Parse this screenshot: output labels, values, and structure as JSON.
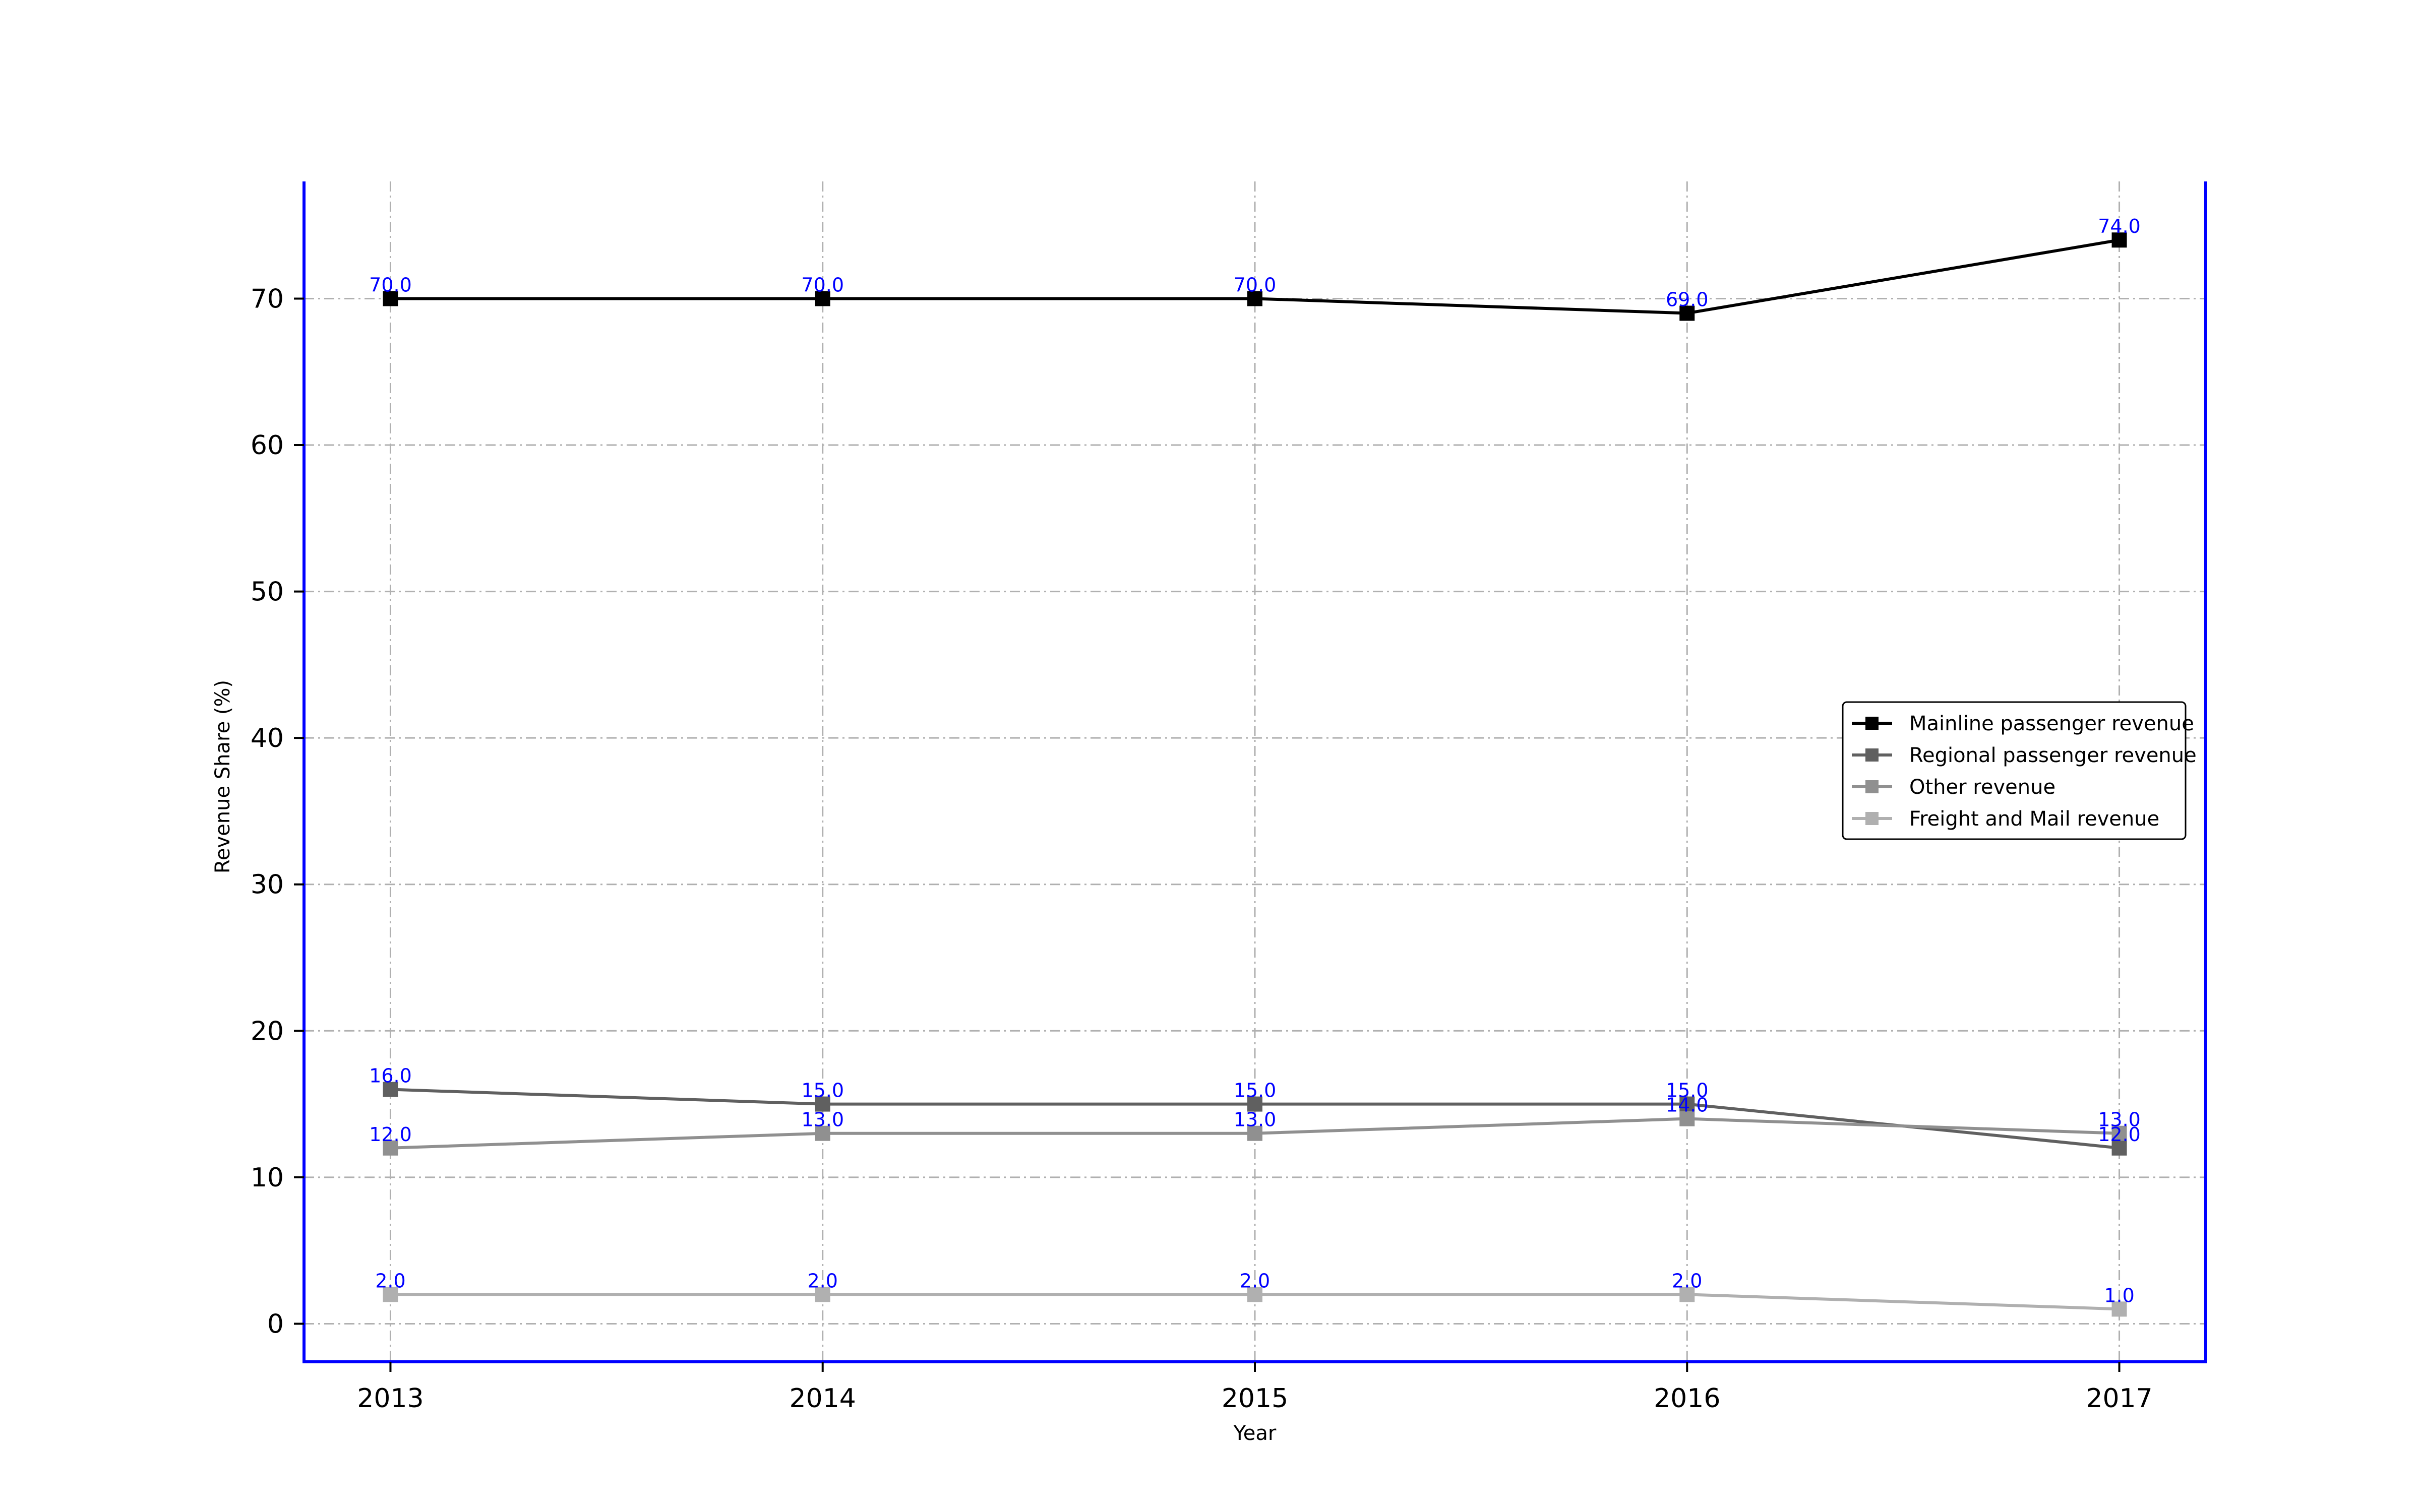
{
  "chart_data": {
    "type": "line",
    "title": "",
    "xlabel": "Year",
    "ylabel": "Revenue Share (%)",
    "x": [
      "2013",
      "2014",
      "2015",
      "2016",
      "2017"
    ],
    "xlim": [
      2012.8,
      2017.2
    ],
    "ylim": [
      -2.6,
      78
    ],
    "yticks": [
      0,
      10,
      20,
      30,
      40,
      50,
      60,
      70
    ],
    "grid": true,
    "legend_position": "center-right",
    "label_color": "#0000ff",
    "axis_color": "#0000ff",
    "series": [
      {
        "name": "Mainline passenger revenue",
        "color": "#000000",
        "marker": "square",
        "values": [
          70.0,
          70.0,
          70.0,
          69.0,
          74.0
        ]
      },
      {
        "name": "Regional passenger revenue",
        "color": "#606060",
        "marker": "square",
        "values": [
          16.0,
          15.0,
          15.0,
          15.0,
          12.0
        ]
      },
      {
        "name": "Other revenue",
        "color": "#909090",
        "marker": "square",
        "values": [
          12.0,
          13.0,
          13.0,
          14.0,
          13.0
        ]
      },
      {
        "name": "Freight and Mail revenue",
        "color": "#b0b0b0",
        "marker": "square",
        "values": [
          2.0,
          2.0,
          2.0,
          2.0,
          1.0
        ]
      }
    ]
  }
}
